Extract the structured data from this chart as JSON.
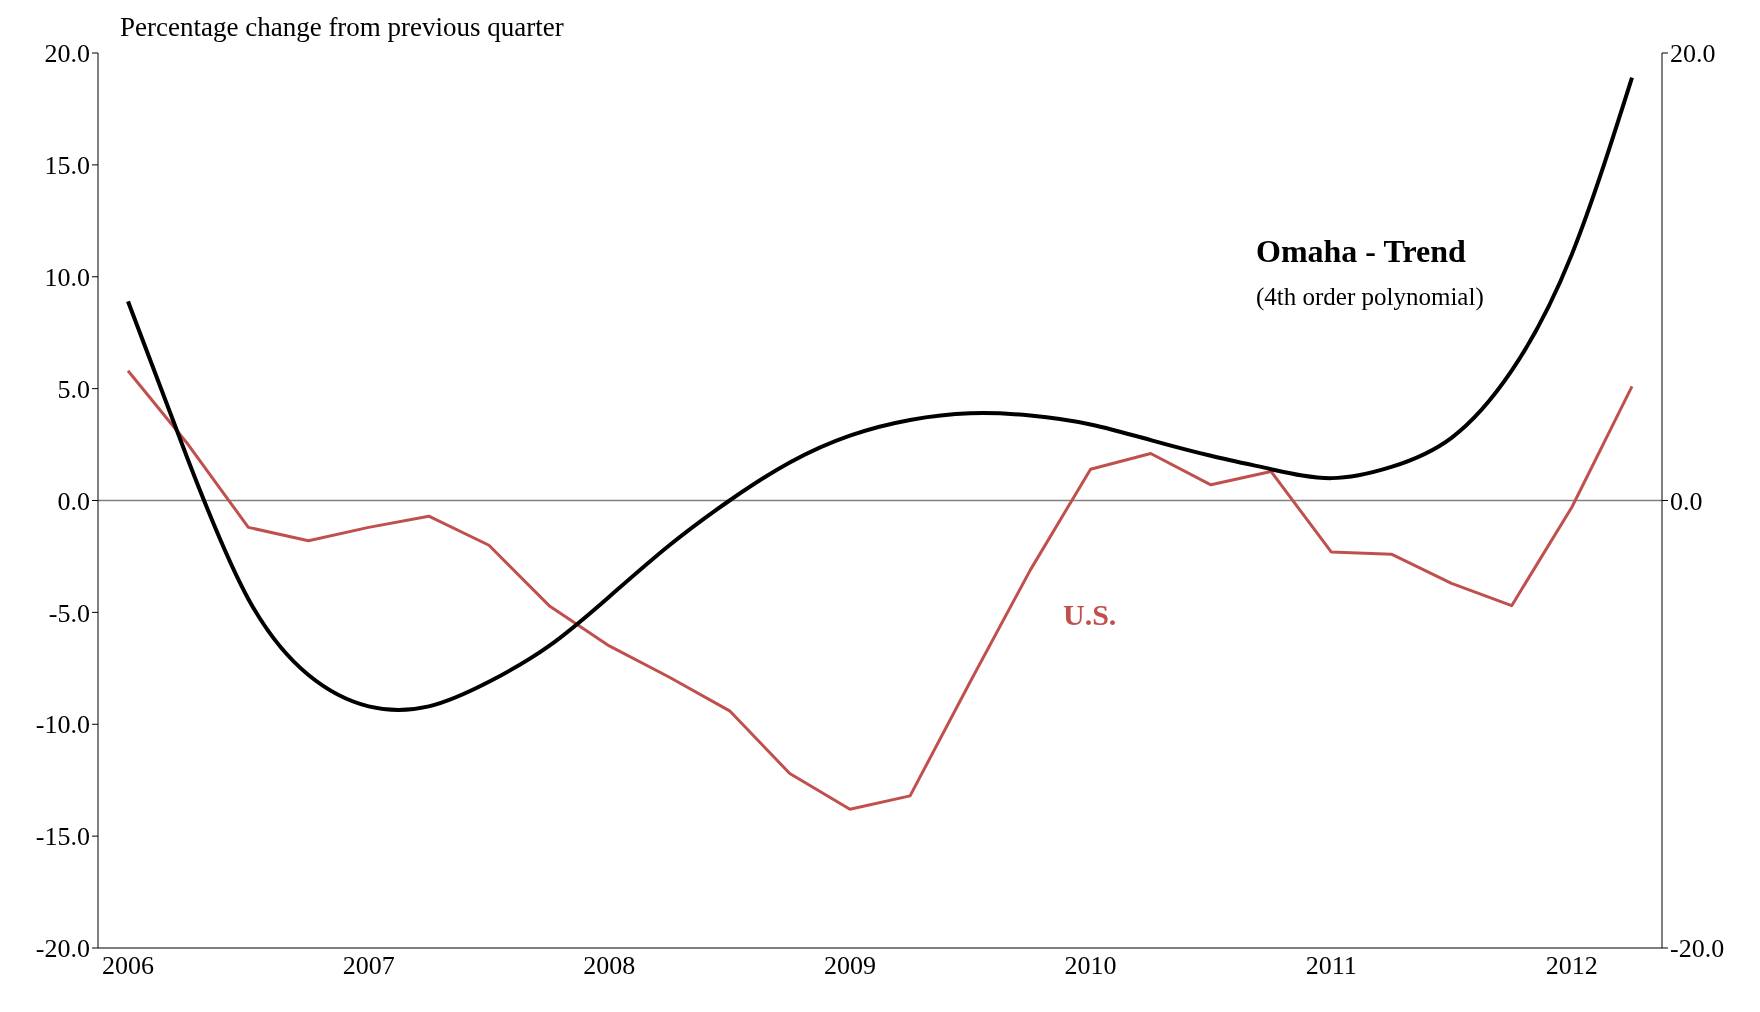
{
  "chart_data": {
    "type": "line",
    "ylabel": "Percentage change from previous quarter",
    "categories": [
      "2006",
      null,
      null,
      null,
      "2007",
      null,
      null,
      null,
      "2008",
      null,
      null,
      null,
      "2009",
      null,
      null,
      null,
      "2010",
      null,
      null,
      null,
      "2011",
      null,
      null,
      null,
      "2012",
      null
    ],
    "series": [
      {
        "name": "U.S.",
        "color": "#c0504d",
        "values": [
          5.8,
          2.5,
          -1.2,
          -1.8,
          -1.2,
          -0.7,
          -2.0,
          -4.7,
          -6.5,
          -7.9,
          -9.4,
          -12.2,
          -13.8,
          -13.2,
          -8.1,
          -3.1,
          1.4,
          2.1,
          0.7,
          1.3,
          -2.3,
          -2.4,
          -3.7,
          -4.7,
          -0.3,
          5.1
        ]
      },
      {
        "name": "Omaha - Trend",
        "color": "#000000",
        "values": [
          8.9,
          1.8,
          -4.4,
          -7.8,
          -9.2,
          -9.2,
          -8.1,
          -6.5,
          -4.3,
          -2.0,
          0.0,
          1.7,
          2.9,
          3.6,
          3.9,
          3.8,
          3.4,
          2.7,
          2.0,
          1.4,
          1.0,
          1.5,
          2.8,
          5.8,
          11.0,
          18.9
        ]
      }
    ],
    "ylim": [
      -20,
      20
    ],
    "yticks": [
      {
        "value": -20,
        "label": "-20.0"
      },
      {
        "value": -15,
        "label": "-15.0"
      },
      {
        "value": -10,
        "label": "-10.0"
      },
      {
        "value": -5,
        "label": "-5.0"
      },
      {
        "value": 0,
        "label": "0.0"
      },
      {
        "value": 5,
        "label": "5.0"
      },
      {
        "value": 10,
        "label": "10.0"
      },
      {
        "value": 15,
        "label": "15.0"
      },
      {
        "value": 20,
        "label": "20.0"
      }
    ],
    "y2lim": [
      -20,
      20
    ],
    "y2ticks": [
      {
        "value": -20,
        "label": "-20.0"
      },
      {
        "value": 0,
        "label": "0.0"
      },
      {
        "value": 20,
        "label": "20.0"
      }
    ],
    "ref_lines": [
      {
        "axis": "y",
        "value": 0,
        "color": "#808080"
      }
    ],
    "annotations": [
      "(4th order polynomial)"
    ],
    "grid": false,
    "legend": false,
    "marker": "none",
    "line_style": "solid"
  }
}
